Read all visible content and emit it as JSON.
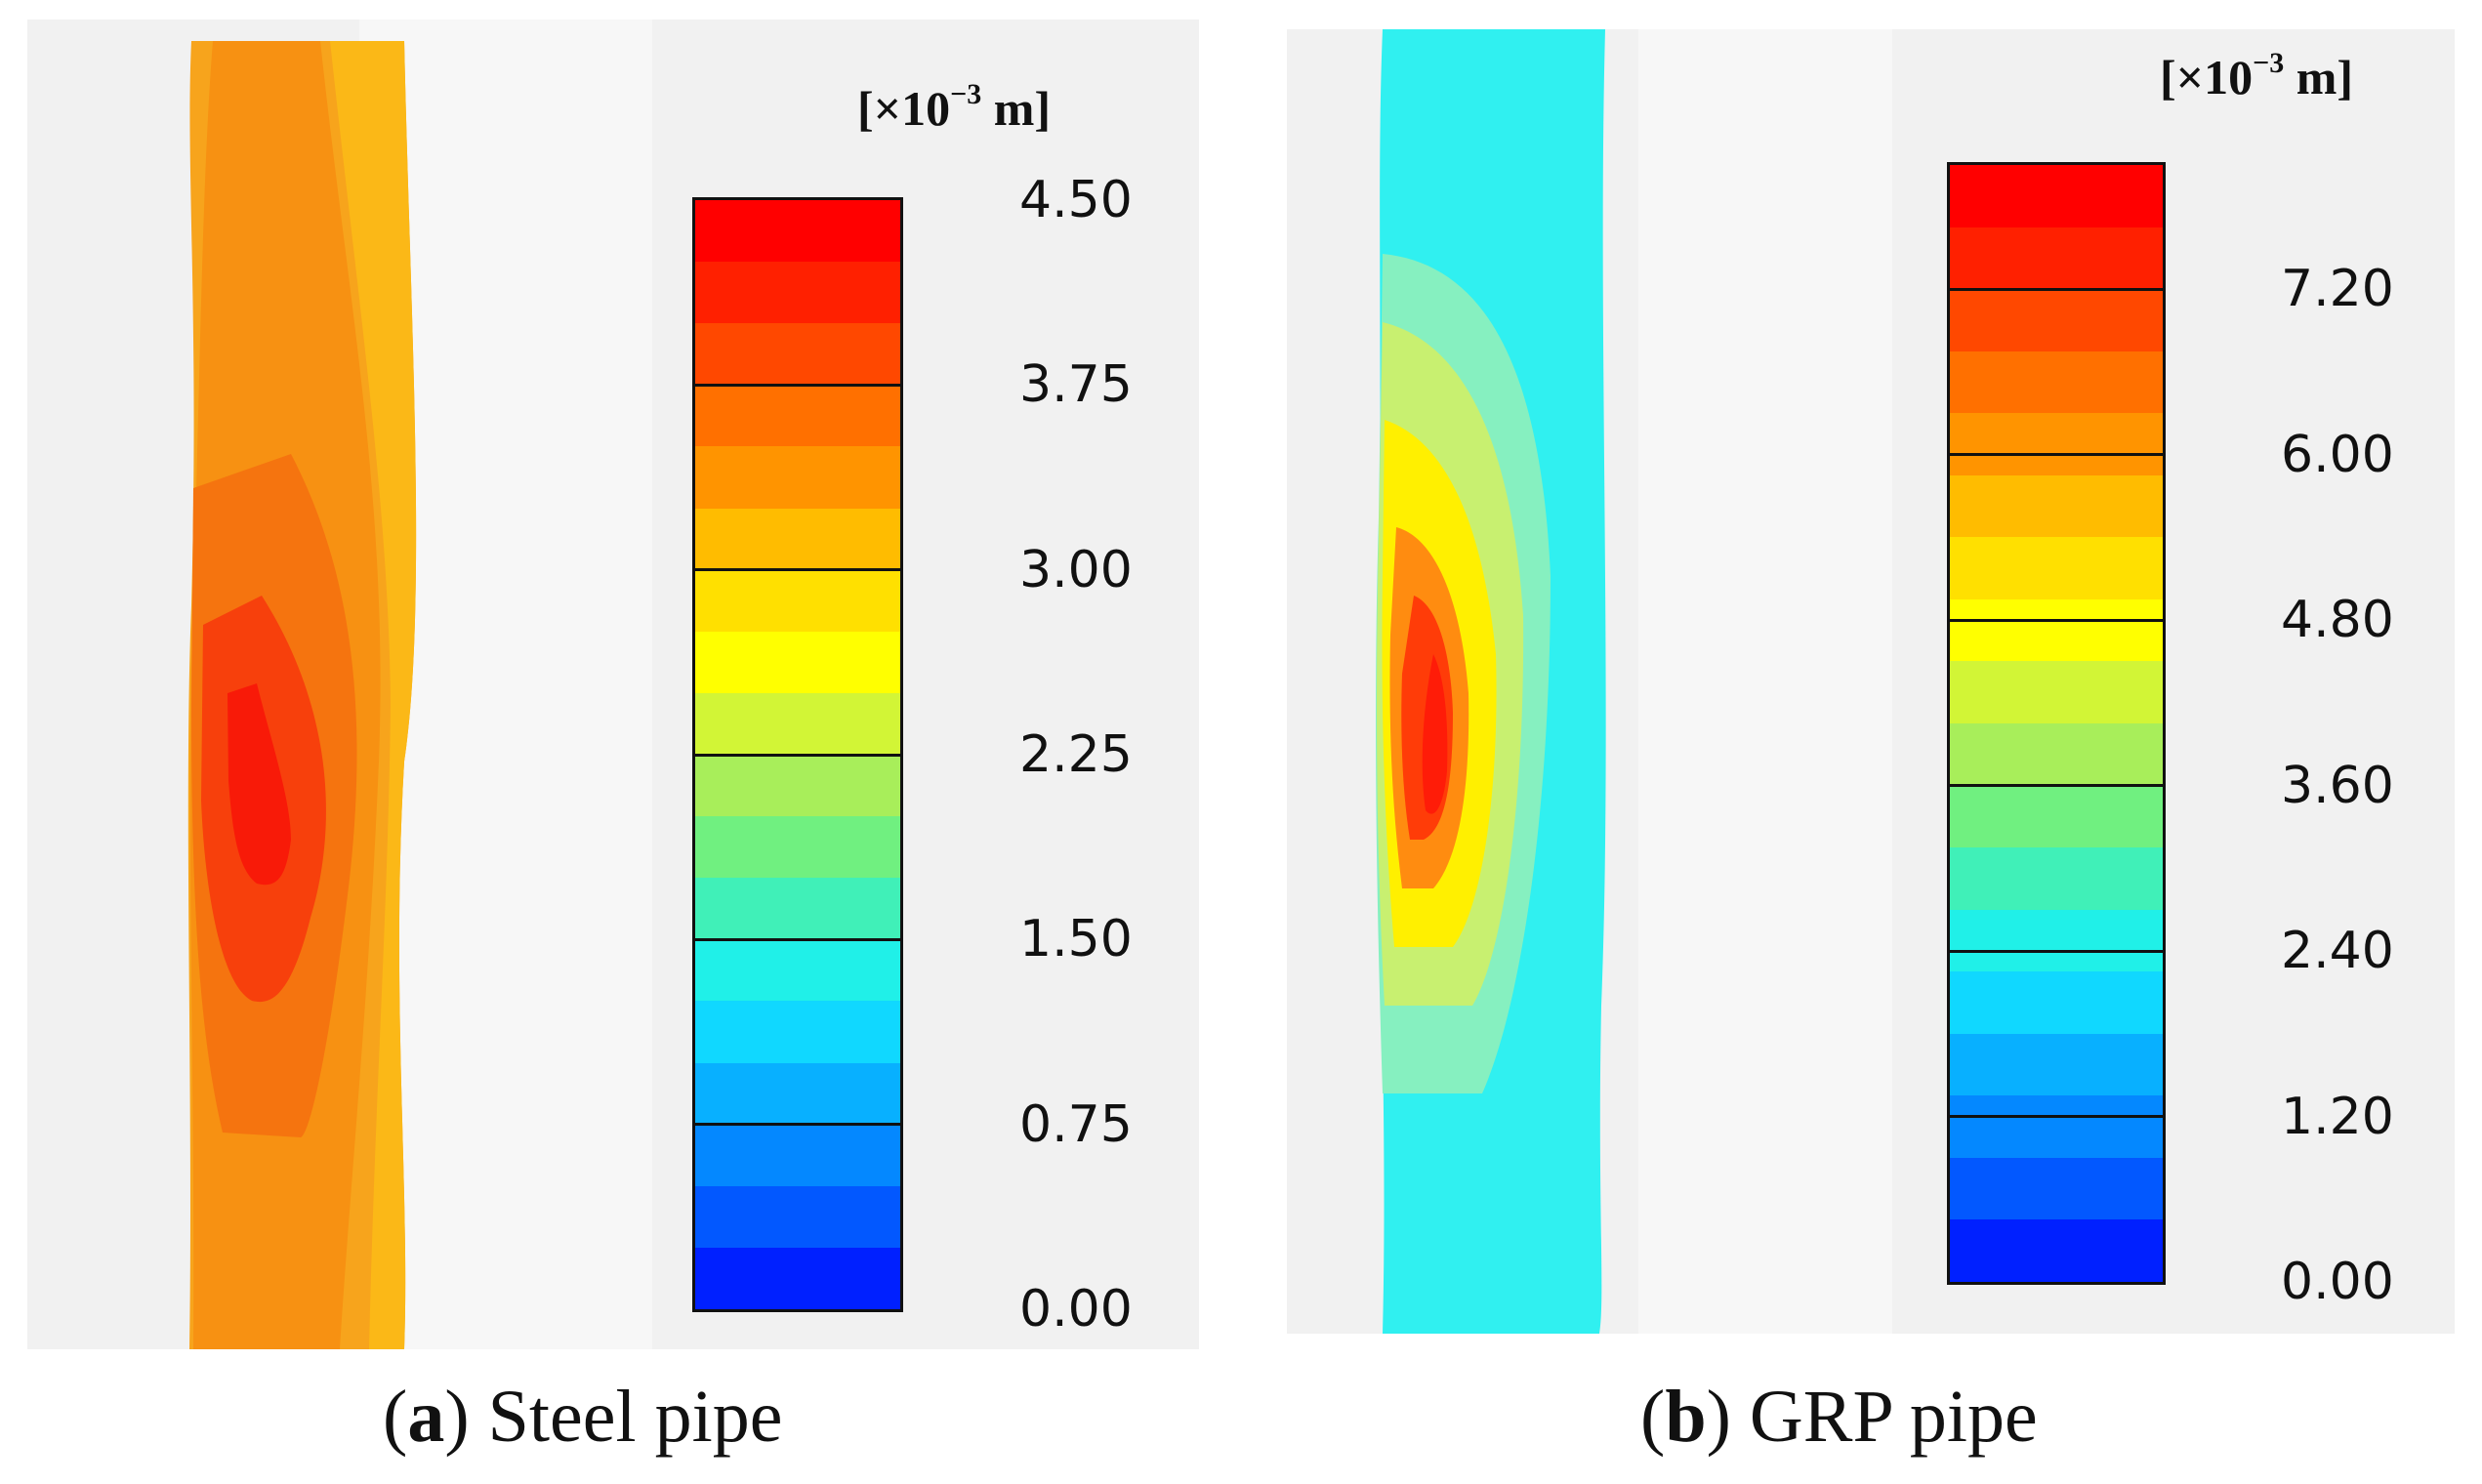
{
  "panels": [
    {
      "id": "a",
      "unit_label": "[×10",
      "unit_exp": "−3",
      "unit_tail": " m]",
      "ticks": [
        "4.50",
        "3.75",
        "3.00",
        "2.25",
        "1.50",
        "0.75",
        "0.00"
      ],
      "scale_min": 0.0,
      "scale_max": 4.5,
      "band_count": 18,
      "caption_letter": "a",
      "caption_text": " Steel pipe"
    },
    {
      "id": "b",
      "unit_label": "[×10",
      "unit_exp": "−3",
      "unit_tail": " m]",
      "ticks": [
        "7.20",
        "6.00",
        "4.80",
        "3.60",
        "2.40",
        "1.20",
        "0.00"
      ],
      "scale_min": 0.0,
      "scale_max": 8.1,
      "band_count": 18,
      "caption_letter": "b",
      "caption_text": " GRP pipe"
    }
  ],
  "colorbar_colors": [
    "#ff0000",
    "#ff2000",
    "#ff4800",
    "#ff7000",
    "#ff9400",
    "#ffbc00",
    "#ffe000",
    "#ffff00",
    "#d2f536",
    "#a8ee5a",
    "#70f080",
    "#40f0b8",
    "#20f0e8",
    "#10d8ff",
    "#08b0ff",
    "#0488ff",
    "#0258ff",
    "#0020ff"
  ]
}
